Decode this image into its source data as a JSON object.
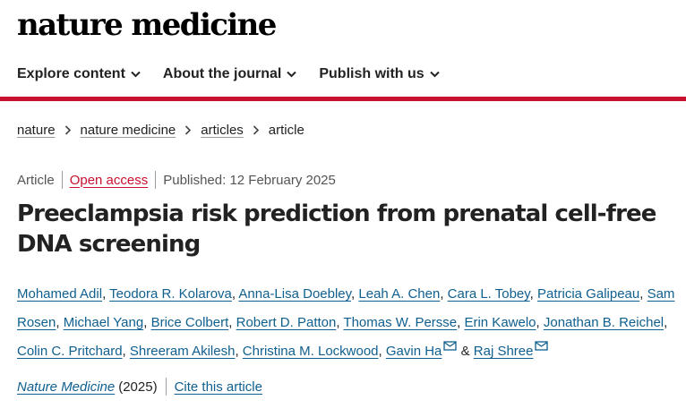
{
  "header": {
    "logo": "nature medicine"
  },
  "nav": {
    "items": [
      {
        "label": "Explore content"
      },
      {
        "label": "About the journal"
      },
      {
        "label": "Publish with us"
      }
    ]
  },
  "breadcrumb": {
    "items": [
      {
        "label": "nature"
      },
      {
        "label": "nature medicine"
      },
      {
        "label": "articles"
      }
    ],
    "current": "article"
  },
  "article": {
    "type": "Article",
    "access": "Open access",
    "published": "Published: 12 February 2025",
    "title": "Preeclampsia risk prediction from prenatal cell-free DNA screening",
    "authors": [
      "Mohamed Adil",
      "Teodora R. Kolarova",
      "Anna-Lisa Doebley",
      "Leah A. Chen",
      "Cara L. Tobey",
      "Patricia Galipeau",
      "Sam Rosen",
      "Michael Yang",
      "Brice Colbert",
      "Robert D. Patton",
      "Thomas W. Persse",
      "Erin Kawelo",
      "Jonathan B. Reichel",
      "Colin C. Pritchard",
      "Shreeram Akilesh",
      "Christina M. Lockwood",
      "Gavin Ha",
      "Raj Shree"
    ],
    "authors_connector": "&",
    "journal": "Nature Medicine",
    "year": "(2025)",
    "cite_label": "Cite this article"
  },
  "colors": {
    "accent": "#c8102e",
    "link": "#0f5f8f",
    "text": "#222222"
  },
  "icons": {
    "nav_chevron": "chevron-down-icon",
    "crumb_separator": "chevron-right-icon",
    "author_email": "mail-icon"
  }
}
